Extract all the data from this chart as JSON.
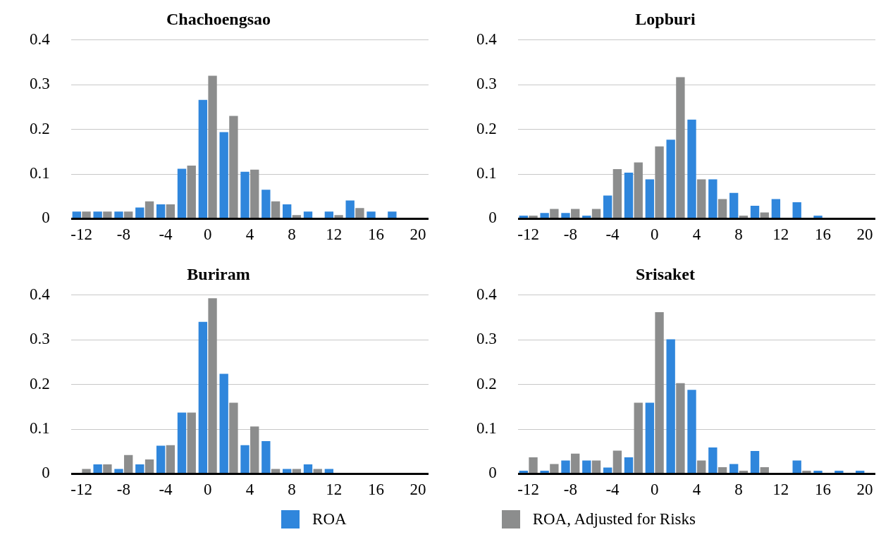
{
  "chart_data": [
    {
      "type": "bar",
      "title": "Chachoengsao",
      "categories": [
        "-12",
        null,
        "-8",
        null,
        "-4",
        null,
        "0",
        null,
        "4",
        null,
        "8",
        null,
        "12",
        null,
        "16",
        null,
        "20"
      ],
      "ylim": [
        0,
        0.4
      ],
      "yticks": [
        0,
        0.1,
        0.2,
        0.3,
        0.4
      ],
      "grid": "y",
      "legend": "bottom",
      "series": [
        {
          "name": "ROA",
          "color": "#2f86dc",
          "values": [
            0.016,
            0.016,
            0.016,
            0.025,
            0.032,
            0.112,
            0.266,
            0.194,
            0.105,
            0.065,
            0.032,
            0.016,
            0.016,
            0.041,
            0.016,
            0.016,
            0
          ]
        },
        {
          "name": "ROA, Adjusted for Risks",
          "color": "#8c8d8d",
          "values": [
            0.016,
            0.016,
            0.016,
            0.039,
            0.032,
            0.119,
            0.32,
            0.23,
            0.11,
            0.039,
            0.008,
            0,
            0.008,
            0.024,
            0,
            0,
            0
          ]
        }
      ]
    },
    {
      "type": "bar",
      "title": "Lopburi",
      "categories": [
        "-12",
        null,
        "-8",
        null,
        "-4",
        null,
        "0",
        null,
        "4",
        null,
        "8",
        null,
        "12",
        null,
        "16",
        null,
        "20"
      ],
      "ylim": [
        0,
        0.4
      ],
      "yticks": [
        0,
        0.1,
        0.2,
        0.3,
        0.4
      ],
      "grid": "y",
      "series": [
        {
          "color": "#2f86dc",
          "values": [
            0.007,
            0.013,
            0.013,
            0.007,
            0.052,
            0.103,
            0.088,
            0.177,
            0.222,
            0.088,
            0.058,
            0.029,
            0.044,
            0.037,
            0.007,
            0,
            0
          ]
        },
        {
          "color": "#8c8d8d",
          "values": [
            0.007,
            0.022,
            0.022,
            0.022,
            0.111,
            0.126,
            0.162,
            0.317,
            0.088,
            0.044,
            0.007,
            0.014,
            0,
            0,
            0,
            0,
            0
          ]
        }
      ]
    },
    {
      "type": "bar",
      "title": "Buriram",
      "categories": [
        "-12",
        null,
        "-8",
        null,
        "-4",
        null,
        "0",
        null,
        "4",
        null,
        "8",
        null,
        "12",
        null,
        "16",
        null,
        "20"
      ],
      "ylim": [
        0,
        0.4
      ],
      "yticks": [
        0,
        0.1,
        0.2,
        0.3,
        0.4
      ],
      "grid": "y",
      "series": [
        {
          "color": "#2f86dc",
          "values": [
            0,
            0.021,
            0.011,
            0.021,
            0.063,
            0.137,
            0.34,
            0.224,
            0.064,
            0.073,
            0.011,
            0.021,
            0.011,
            0,
            0,
            0,
            0
          ]
        },
        {
          "color": "#8c8d8d",
          "values": [
            0.011,
            0.021,
            0.042,
            0.032,
            0.064,
            0.137,
            0.393,
            0.159,
            0.106,
            0.011,
            0.011,
            0.011,
            0,
            0,
            0,
            0,
            0
          ]
        }
      ]
    },
    {
      "type": "bar",
      "title": "Srisaket",
      "categories": [
        "-12",
        null,
        "-8",
        null,
        "-4",
        null,
        "0",
        null,
        "4",
        null,
        "8",
        null,
        "12",
        null,
        "16",
        null,
        "20"
      ],
      "ylim": [
        0,
        0.4
      ],
      "yticks": [
        0,
        0.1,
        0.2,
        0.3,
        0.4
      ],
      "grid": "y",
      "series": [
        {
          "color": "#2f86dc",
          "values": [
            0.007,
            0.007,
            0.03,
            0.03,
            0.014,
            0.037,
            0.159,
            0.301,
            0.188,
            0.059,
            0.022,
            0.051,
            0,
            0.03,
            0.007,
            0.007,
            0.007
          ]
        },
        {
          "color": "#8c8d8d",
          "values": [
            0.037,
            0.022,
            0.045,
            0.03,
            0.052,
            0.159,
            0.362,
            0.203,
            0.03,
            0.015,
            0.007,
            0.015,
            0,
            0.007,
            0,
            0,
            0
          ]
        }
      ]
    }
  ]
}
